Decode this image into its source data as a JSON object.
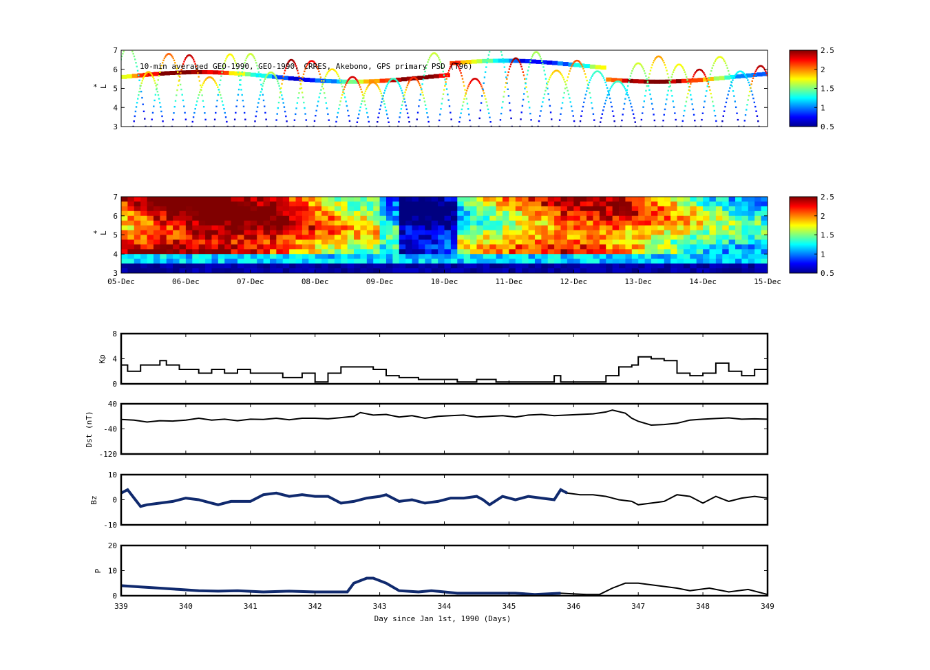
{
  "colors": {
    "axis": "#000000",
    "psd_line": "#000000",
    "omni_line": "#102a6e"
  },
  "colorscale": {
    "name": "jet",
    "min": 0.5,
    "max": 2.5,
    "ticks": [
      "2.5",
      "2",
      "1.5",
      "1",
      "0.5"
    ]
  },
  "chart_data": [
    {
      "type": "scatter",
      "title": "10-min averaged GEO-1990, GEO-1990, CRRES, Akebono, GPS  primary PSD (T96)",
      "ylabel_star": "*",
      "ylabel": "L",
      "yticks": [
        "7",
        "6",
        "5",
        "4",
        "3"
      ],
      "ylim": [
        3,
        7
      ],
      "xlim": [
        339,
        349
      ],
      "colorbar_ticks": [
        "2.5",
        "2",
        "1.5",
        "1",
        "0.5"
      ]
    },
    {
      "type": "heatmap",
      "ylabel_star": "*",
      "ylabel": "L",
      "yticks": [
        "7",
        "6",
        "5",
        "4",
        "3"
      ],
      "ylim": [
        3,
        7
      ],
      "xlim": [
        339,
        349
      ],
      "xticks": [
        "05-Dec",
        "06-Dec",
        "07-Dec",
        "08-Dec",
        "09-Dec",
        "10-Dec",
        "11-Dec",
        "12-Dec",
        "13-Dec",
        "14-Dec",
        "15-Dec"
      ],
      "colorbar_ticks": [
        "2.5",
        "2",
        "1.5",
        "1",
        "0.5"
      ]
    },
    {
      "type": "line",
      "ylabel": "Kp",
      "yticks": [
        "8",
        "4",
        "0"
      ],
      "ylim": [
        0,
        8
      ],
      "xlim": [
        339,
        349
      ],
      "x": [
        339.0,
        339.1,
        339.3,
        339.5,
        339.6,
        339.7,
        339.9,
        340.1,
        340.2,
        340.4,
        340.6,
        340.8,
        341.0,
        341.2,
        341.5,
        341.8,
        342.0,
        342.2,
        342.4,
        342.6,
        342.9,
        343.1,
        343.3,
        343.6,
        343.9,
        344.2,
        344.5,
        344.8,
        345.0,
        345.3,
        345.6,
        345.7,
        345.8,
        345.9,
        346.2,
        346.4,
        346.5,
        346.7,
        346.9,
        347.0,
        347.2,
        347.4,
        347.6,
        347.8,
        348.0,
        348.2,
        348.4,
        348.6,
        348.8,
        349.0
      ],
      "y": [
        3.0,
        2.0,
        3.0,
        3.0,
        3.7,
        3.0,
        2.3,
        2.3,
        1.7,
        2.3,
        1.7,
        2.3,
        1.7,
        1.7,
        1.0,
        1.7,
        0.3,
        1.7,
        2.7,
        2.7,
        2.3,
        1.3,
        1.0,
        0.7,
        0.7,
        0.3,
        0.7,
        0.3,
        0.3,
        0.3,
        0.3,
        1.3,
        0.3,
        0.3,
        0.3,
        0.3,
        1.3,
        2.7,
        3.0,
        4.3,
        4.0,
        3.7,
        1.7,
        1.3,
        1.7,
        3.3,
        2.0,
        1.3,
        2.3,
        0.3
      ]
    },
    {
      "type": "line",
      "ylabel": "Dst (nT)",
      "yticks": [
        "40",
        "-40",
        "-120"
      ],
      "ylim": [
        -120,
        40
      ],
      "xlim": [
        339,
        349
      ],
      "x": [
        339.0,
        339.2,
        339.4,
        339.6,
        339.8,
        340.0,
        340.2,
        340.4,
        340.6,
        340.8,
        341.0,
        341.2,
        341.4,
        341.6,
        341.8,
        342.0,
        342.2,
        342.4,
        342.6,
        342.7,
        342.9,
        343.1,
        343.3,
        343.5,
        343.7,
        343.9,
        344.1,
        344.3,
        344.5,
        344.7,
        344.9,
        345.1,
        345.3,
        345.5,
        345.7,
        345.9,
        346.1,
        346.3,
        346.5,
        346.6,
        346.8,
        346.9,
        347.0,
        347.2,
        347.4,
        347.6,
        347.8,
        348.0,
        348.2,
        348.4,
        348.6,
        348.8,
        349.0
      ],
      "y": [
        -10,
        -12,
        -18,
        -14,
        -15,
        -12,
        -6,
        -12,
        -9,
        -14,
        -9,
        -10,
        -6,
        -11,
        -6,
        -6,
        -8,
        -4,
        0,
        12,
        4,
        6,
        -2,
        2,
        -6,
        0,
        2,
        4,
        -2,
        0,
        2,
        -2,
        4,
        6,
        2,
        4,
        6,
        8,
        14,
        20,
        10,
        -6,
        -16,
        -28,
        -26,
        -22,
        -12,
        -9,
        -7,
        -5,
        -9,
        -8,
        -9
      ]
    },
    {
      "type": "line",
      "ylabel": "Bz",
      "yticks": [
        "10",
        "0",
        "-10"
      ],
      "ylim": [
        -15,
        15
      ],
      "xlim": [
        339,
        349
      ],
      "x": [
        339.0,
        339.1,
        339.2,
        339.3,
        339.4,
        339.6,
        339.8,
        340.0,
        340.2,
        340.4,
        340.5,
        340.7,
        341.0,
        341.2,
        341.4,
        341.6,
        341.8,
        342.0,
        342.2,
        342.4,
        342.6,
        342.8,
        343.0,
        343.1,
        343.3,
        343.5,
        343.7,
        343.9,
        344.1,
        344.3,
        344.5,
        344.6,
        344.7,
        344.9,
        345.1,
        345.3,
        345.5,
        345.7,
        345.8,
        345.9,
        346.1,
        346.3,
        346.5,
        346.7,
        346.9,
        347.0,
        347.2,
        347.4,
        347.6,
        347.8,
        348.0,
        348.2,
        348.4,
        348.6,
        348.8,
        349.0
      ],
      "y": [
        4,
        6,
        1,
        -4,
        -3,
        -2,
        -1,
        1,
        0,
        -2,
        -3,
        -1,
        -1,
        3,
        4,
        2,
        3,
        2,
        2,
        -2,
        -1,
        1,
        2,
        3,
        -1,
        0,
        -2,
        -1,
        1,
        1,
        2,
        0,
        -3,
        2,
        0,
        2,
        1,
        0,
        6,
        4,
        3,
        3,
        2,
        0,
        -1,
        -3,
        -2,
        -1,
        3,
        2,
        -2,
        2,
        -1,
        1,
        2,
        1
      ]
    },
    {
      "type": "line",
      "ylabel": "P",
      "yticks": [
        "20",
        "10",
        "0"
      ],
      "ylim": [
        0,
        20
      ],
      "xlim": [
        339,
        349
      ],
      "xticks": [
        "339",
        "340",
        "341",
        "342",
        "343",
        "344",
        "345",
        "346",
        "347",
        "348",
        "349"
      ],
      "xlabel": "Day since Jan 1st, 1990 (Days)",
      "x": [
        339.0,
        339.3,
        339.6,
        339.9,
        340.2,
        340.5,
        340.8,
        341.2,
        341.6,
        342.0,
        342.3,
        342.5,
        342.6,
        342.8,
        342.9,
        343.1,
        343.3,
        343.6,
        343.8,
        344.0,
        344.2,
        344.5,
        344.8,
        345.1,
        345.4,
        345.8,
        346.2,
        346.4,
        346.6,
        346.8,
        347.0,
        347.3,
        347.6,
        347.8,
        348.1,
        348.4,
        348.7,
        349.0
      ],
      "y": [
        4,
        3.5,
        3,
        2.5,
        2,
        1.8,
        2,
        1.5,
        1.8,
        1.5,
        1.5,
        1.5,
        5,
        7,
        7,
        5,
        2,
        1.5,
        2,
        1.5,
        1,
        1,
        1,
        1,
        0.5,
        1,
        0.5,
        0.5,
        3,
        5,
        5,
        4,
        3,
        2,
        3,
        1.5,
        2.5,
        0.5
      ]
    }
  ]
}
